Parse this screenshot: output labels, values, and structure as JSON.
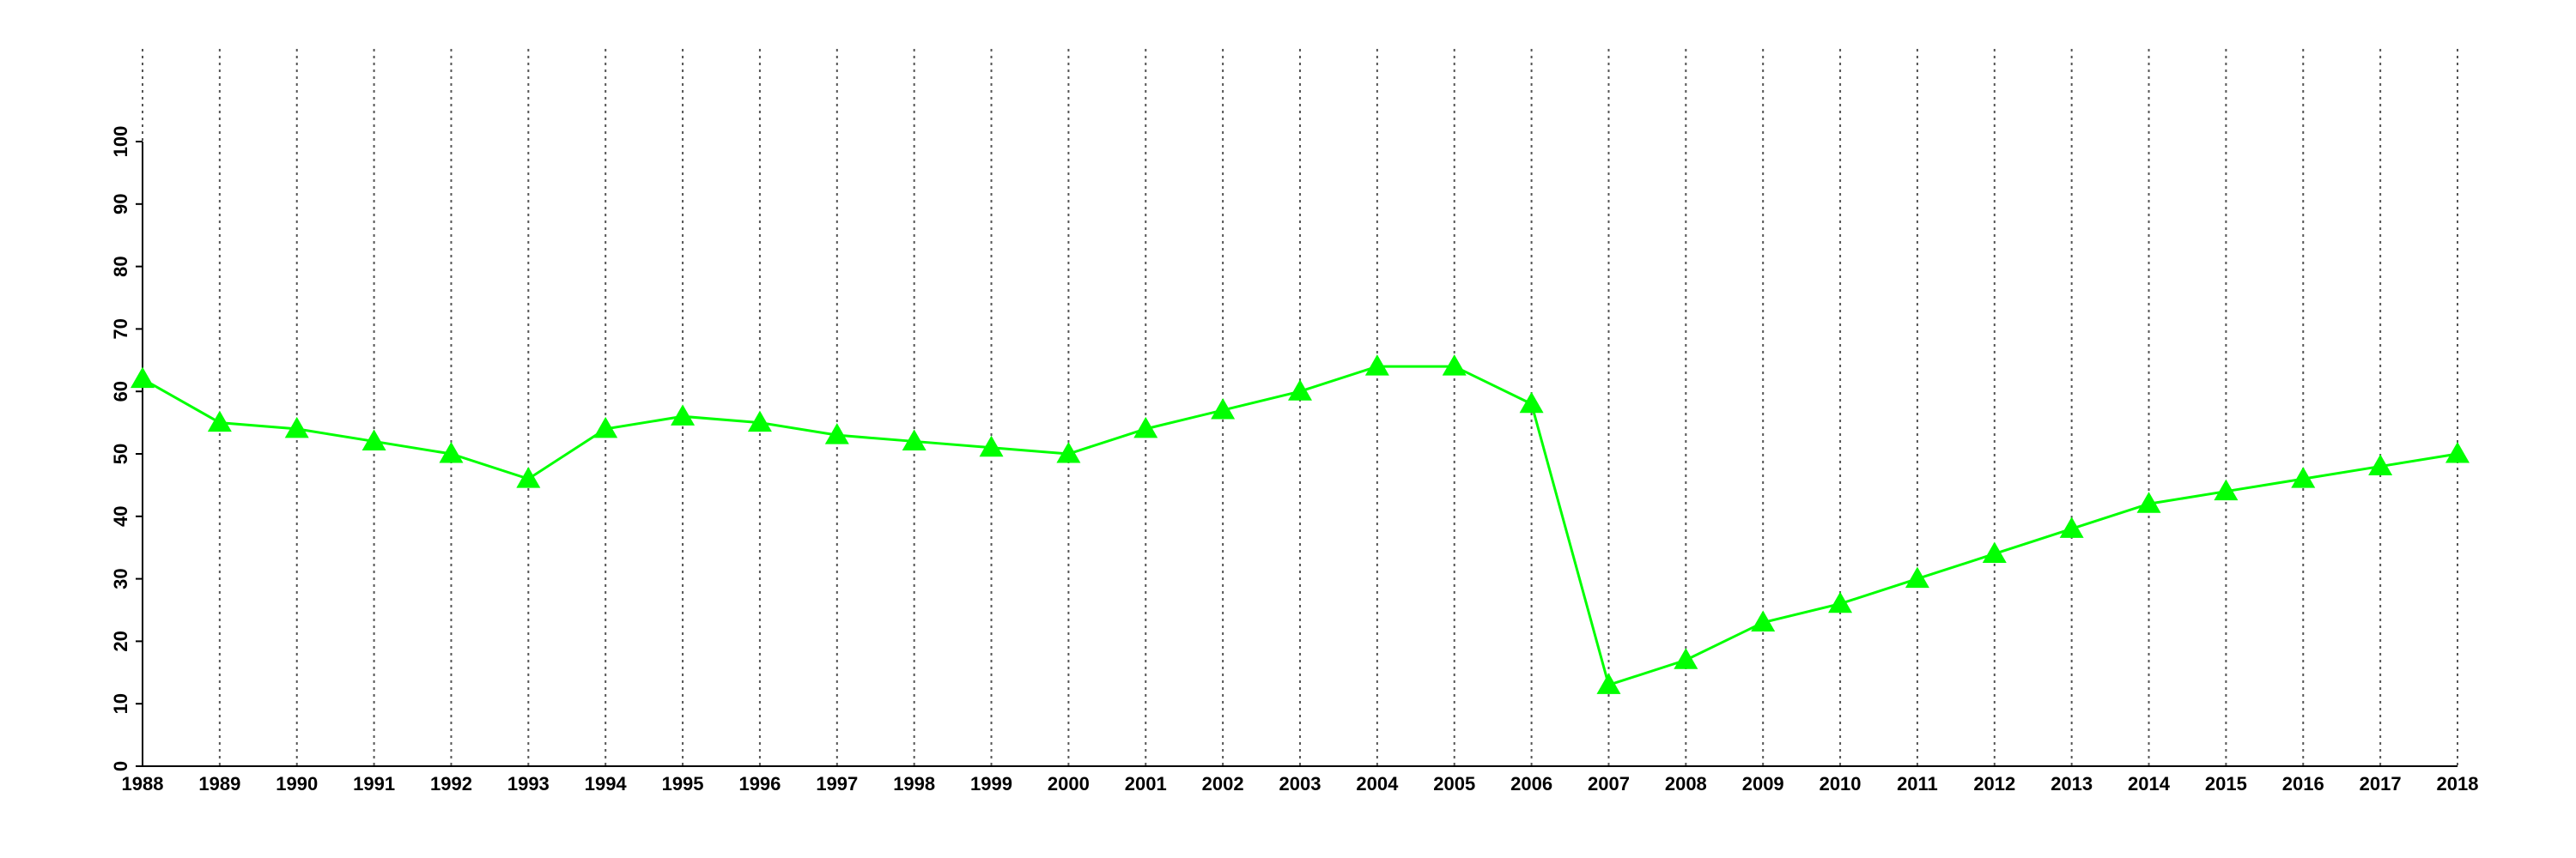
{
  "chart_data": {
    "type": "line",
    "x": [
      1988,
      1989,
      1990,
      1991,
      1992,
      1993,
      1994,
      1995,
      1996,
      1997,
      1998,
      1999,
      2000,
      2001,
      2002,
      2003,
      2004,
      2005,
      2006,
      2007,
      2008,
      2009,
      2010,
      2011,
      2012,
      2013,
      2014,
      2015,
      2016,
      2017,
      2018
    ],
    "series": [
      {
        "color": "#00ff00",
        "marker": "triangle",
        "values": [
          62,
          55,
          54,
          52,
          50,
          46,
          54,
          56,
          55,
          53,
          52,
          51,
          50,
          54,
          57,
          60,
          64,
          64,
          58,
          13,
          17,
          23,
          26,
          30,
          34,
          38,
          42,
          44,
          46,
          48,
          50
        ]
      }
    ],
    "xlim": [
      1988,
      2018
    ],
    "xticks": [
      1988,
      1989,
      1990,
      1991,
      1992,
      1993,
      1994,
      1995,
      1996,
      1997,
      1998,
      1999,
      2000,
      2001,
      2002,
      2003,
      2004,
      2005,
      2006,
      2007,
      2008,
      2009,
      2010,
      2011,
      2012,
      2013,
      2014,
      2015,
      2016,
      2017,
      2018
    ],
    "ylim": [
      0,
      100
    ],
    "yticks": [
      0,
      10,
      20,
      30,
      40,
      50,
      60,
      70,
      80,
      90,
      100
    ],
    "grid": "x"
  }
}
